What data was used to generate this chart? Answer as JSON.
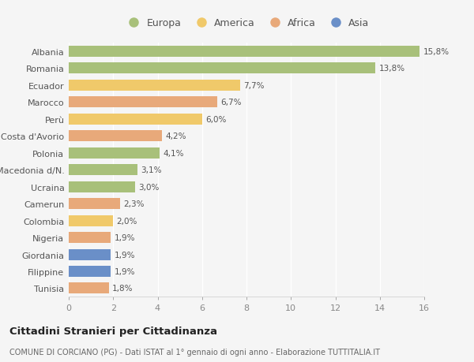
{
  "countries": [
    "Albania",
    "Romania",
    "Ecuador",
    "Marocco",
    "Perù",
    "Costa d'Avorio",
    "Polonia",
    "Macedonia d/N.",
    "Ucraina",
    "Camerun",
    "Colombia",
    "Nigeria",
    "Giordania",
    "Filippine",
    "Tunisia"
  ],
  "values": [
    15.8,
    13.8,
    7.7,
    6.7,
    6.0,
    4.2,
    4.1,
    3.1,
    3.0,
    2.3,
    2.0,
    1.9,
    1.9,
    1.9,
    1.8
  ],
  "labels": [
    "15,8%",
    "13,8%",
    "7,7%",
    "6,7%",
    "6,0%",
    "4,2%",
    "4,1%",
    "3,1%",
    "3,0%",
    "2,3%",
    "2,0%",
    "1,9%",
    "1,9%",
    "1,9%",
    "1,8%"
  ],
  "continents": [
    "Europa",
    "Europa",
    "America",
    "Africa",
    "America",
    "Africa",
    "Europa",
    "Europa",
    "Europa",
    "Africa",
    "America",
    "Africa",
    "Asia",
    "Asia",
    "Africa"
  ],
  "colors": {
    "Europa": "#a8c07a",
    "America": "#f0c96a",
    "Africa": "#e8a97a",
    "Asia": "#6a8fc8"
  },
  "legend_order": [
    "Europa",
    "America",
    "Africa",
    "Asia"
  ],
  "xlim": [
    0,
    16
  ],
  "xticks": [
    0,
    2,
    4,
    6,
    8,
    10,
    12,
    14,
    16
  ],
  "title": "Cittadini Stranieri per Cittadinanza",
  "subtitle": "COMUNE DI CORCIANO (PG) - Dati ISTAT al 1° gennaio di ogni anno - Elaborazione TUTTITALIA.IT",
  "background_color": "#f5f5f5",
  "grid_color": "#ffffff",
  "bar_height": 0.65,
  "label_fontsize": 7.5,
  "ytick_fontsize": 8.0,
  "xtick_fontsize": 8.0,
  "legend_fontsize": 9.0,
  "title_fontsize": 9.5,
  "subtitle_fontsize": 7.0
}
